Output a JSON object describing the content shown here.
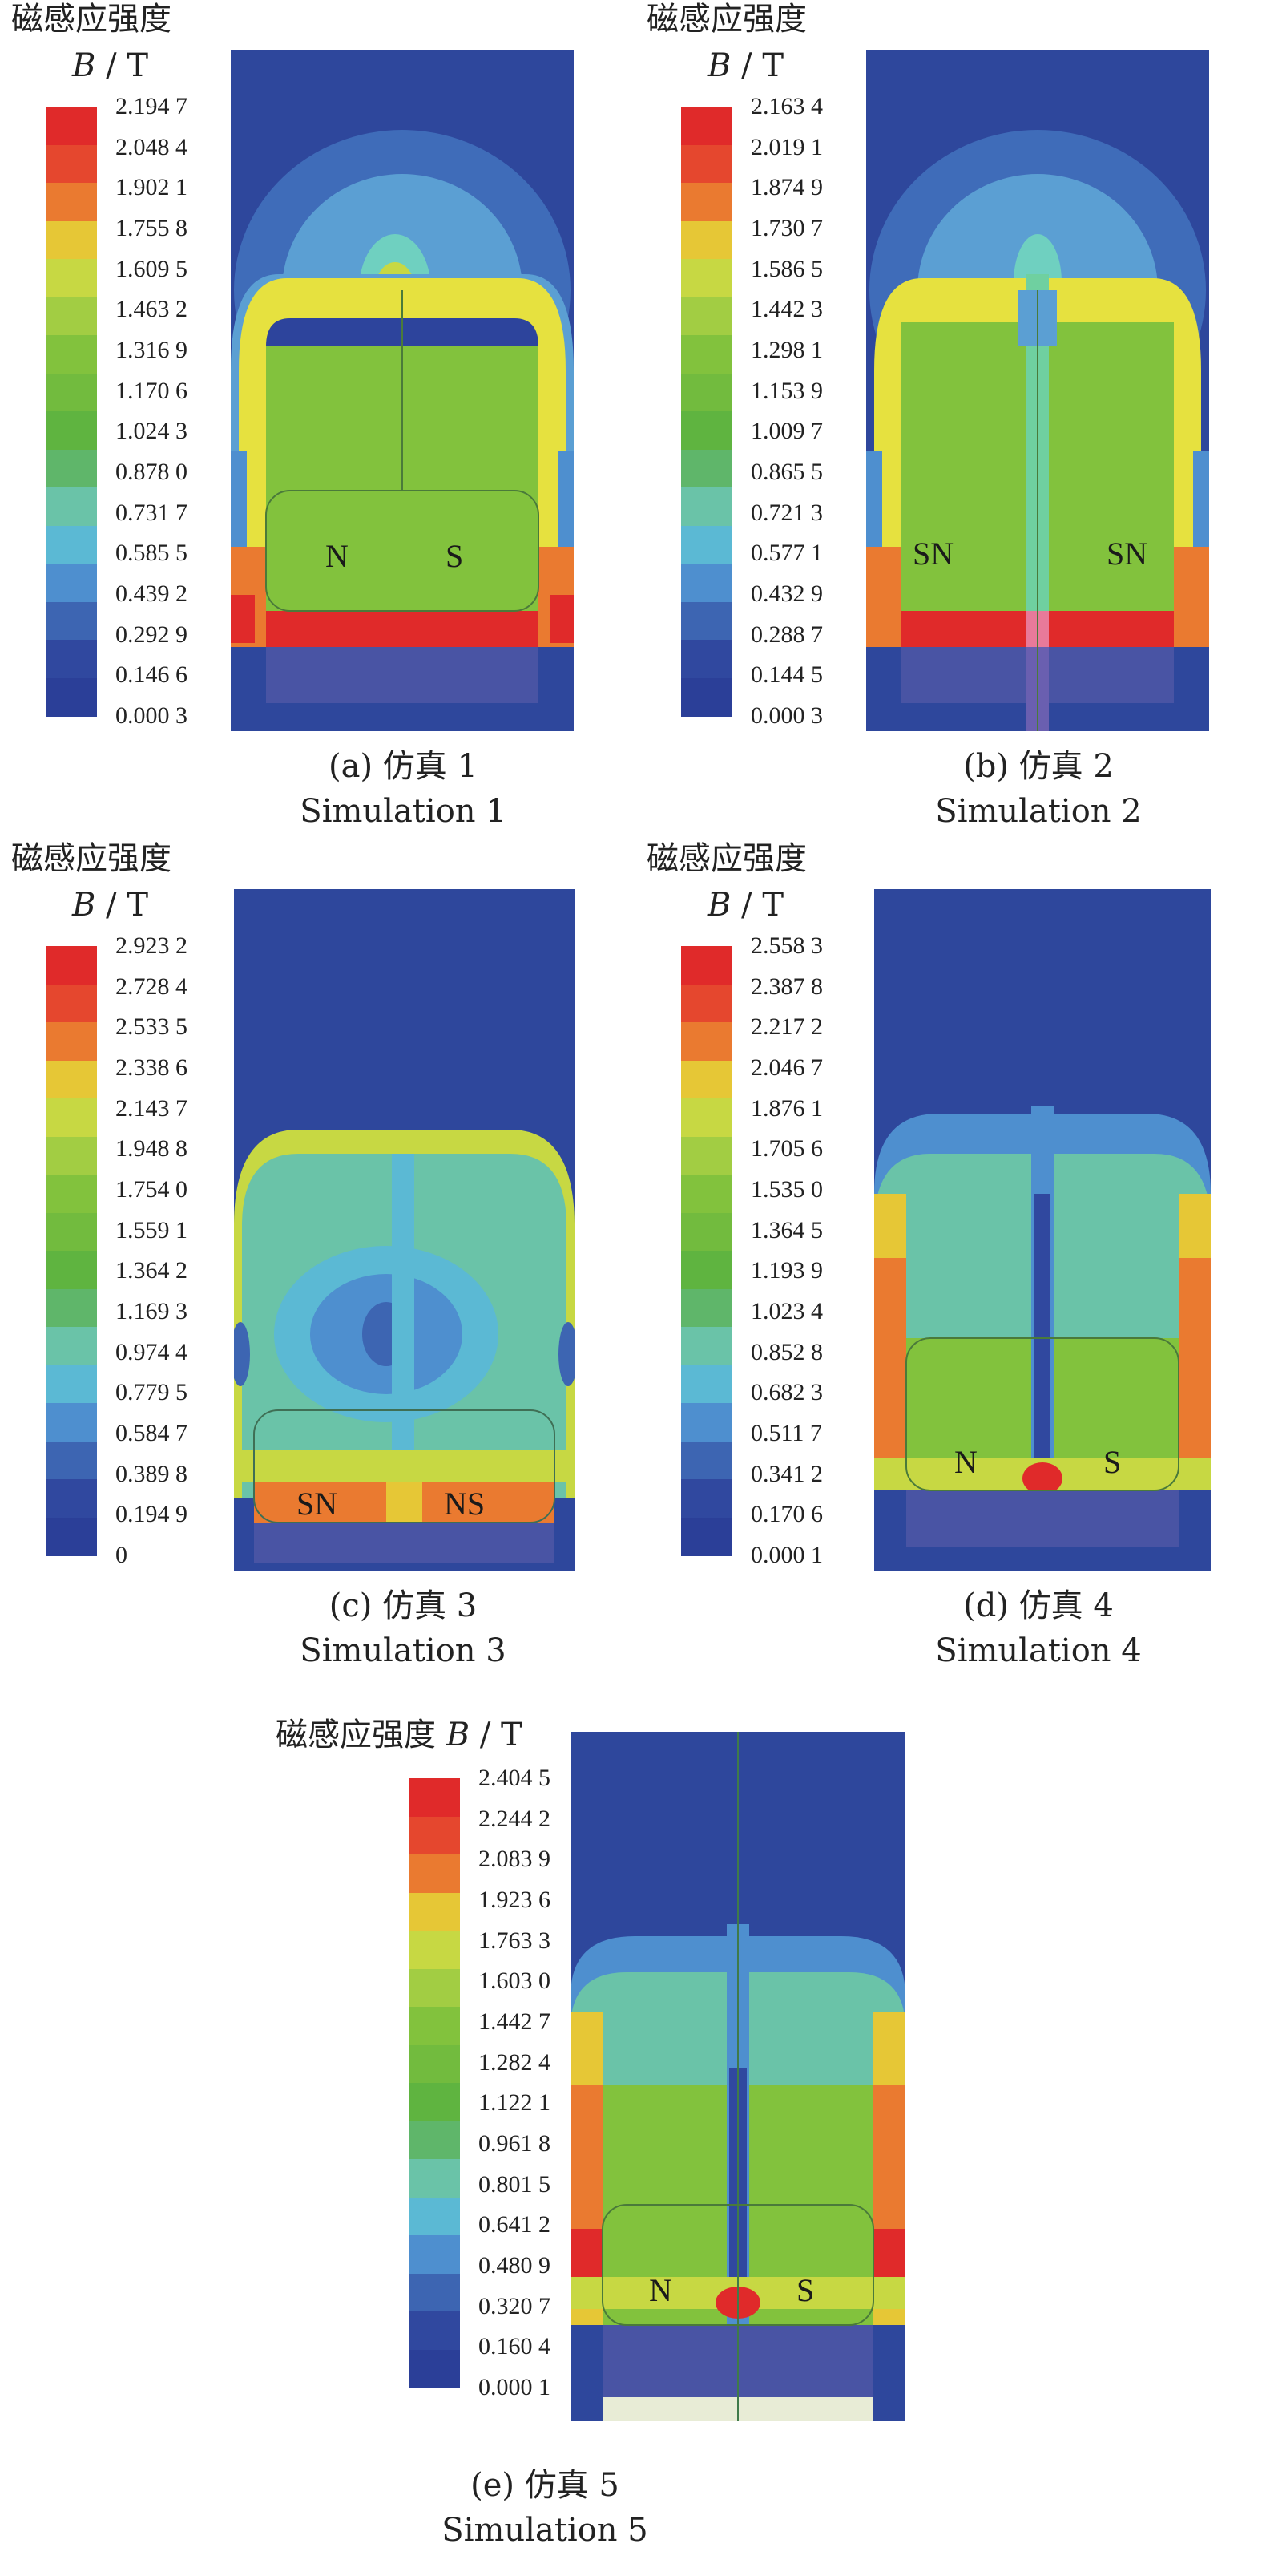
{
  "figures": [
    {
      "heading": "磁感应强度",
      "unit_symbol": "B",
      "unit_rest": " / T",
      "ticks": [
        "2.194 7",
        "2.048 4",
        "1.902 1",
        "1.755 8",
        "1.609 5",
        "1.463 2",
        "1.316 9",
        "1.170 6",
        "1.024 3",
        "0.878 0",
        "0.731 7",
        "0.585 5",
        "0.439 2",
        "0.292 9",
        "0.146 6",
        "0.000 3"
      ],
      "poles": [
        "N",
        "S"
      ],
      "caption_cn": "(a) 仿真 1",
      "caption_en": "Simulation 1"
    },
    {
      "heading": "磁感应强度",
      "unit_symbol": "B",
      "unit_rest": " / T",
      "ticks": [
        "2.163 4",
        "2.019 1",
        "1.874 9",
        "1.730 7",
        "1.586 5",
        "1.442 3",
        "1.298 1",
        "1.153 9",
        "1.009 7",
        "0.865 5",
        "0.721 3",
        "0.577 1",
        "0.432 9",
        "0.288 7",
        "0.144 5",
        "0.000 3"
      ],
      "poles": [
        "SN",
        "SN"
      ],
      "caption_cn": "(b) 仿真 2",
      "caption_en": "Simulation 2"
    },
    {
      "heading": "磁感应强度",
      "unit_symbol": "B",
      "unit_rest": " / T",
      "ticks": [
        "2.923 2",
        "2.728 4",
        "2.533 5",
        "2.338 6",
        "2.143 7",
        "1.948 8",
        "1.754 0",
        "1.559 1",
        "1.364 2",
        "1.169 3",
        "0.974 4",
        "0.779 5",
        "0.584 7",
        "0.389 8",
        "0.194 9",
        "0"
      ],
      "poles": [
        "SN",
        "NS"
      ],
      "caption_cn": "(c) 仿真 3",
      "caption_en": "Simulation 3"
    },
    {
      "heading": "磁感应强度",
      "unit_symbol": "B",
      "unit_rest": " / T",
      "ticks": [
        "2.558 3",
        "2.387 8",
        "2.217 2",
        "2.046 7",
        "1.876 1",
        "1.705 6",
        "1.535 0",
        "1.364 5",
        "1.193 9",
        "1.023 4",
        "0.852 8",
        "0.682 3",
        "0.511 7",
        "0.341 2",
        "0.170 6",
        "0.000 1"
      ],
      "poles": [
        "N",
        "S"
      ],
      "caption_cn": "(d) 仿真 4",
      "caption_en": "Simulation 4"
    },
    {
      "heading": "磁感应强度",
      "unit_symbol": "B",
      "unit_rest": " / T",
      "ticks": [
        "2.404 5",
        "2.244 2",
        "2.083 9",
        "1.923 6",
        "1.763 3",
        "1.603 0",
        "1.442 7",
        "1.282 4",
        "1.122 1",
        "0.961 8",
        "0.801 5",
        "0.641 2",
        "0.480 9",
        "0.320 7",
        "0.160 4",
        "0.000 1"
      ],
      "poles": [
        "N",
        "S"
      ],
      "caption_cn": "(e) 仿真 5",
      "caption_en": "Simulation 5"
    }
  ],
  "colormap": [
    "#e02a2a",
    "#e5472e",
    "#ea7a30",
    "#e6c736",
    "#c7d843",
    "#a2cd43",
    "#82c23d",
    "#72bb3e",
    "#5fb440",
    "#5fb66a",
    "#6ac3a8",
    "#5bb9d4",
    "#4e8fcf",
    "#3d65b2",
    "#30489f",
    "#2b3f98"
  ]
}
